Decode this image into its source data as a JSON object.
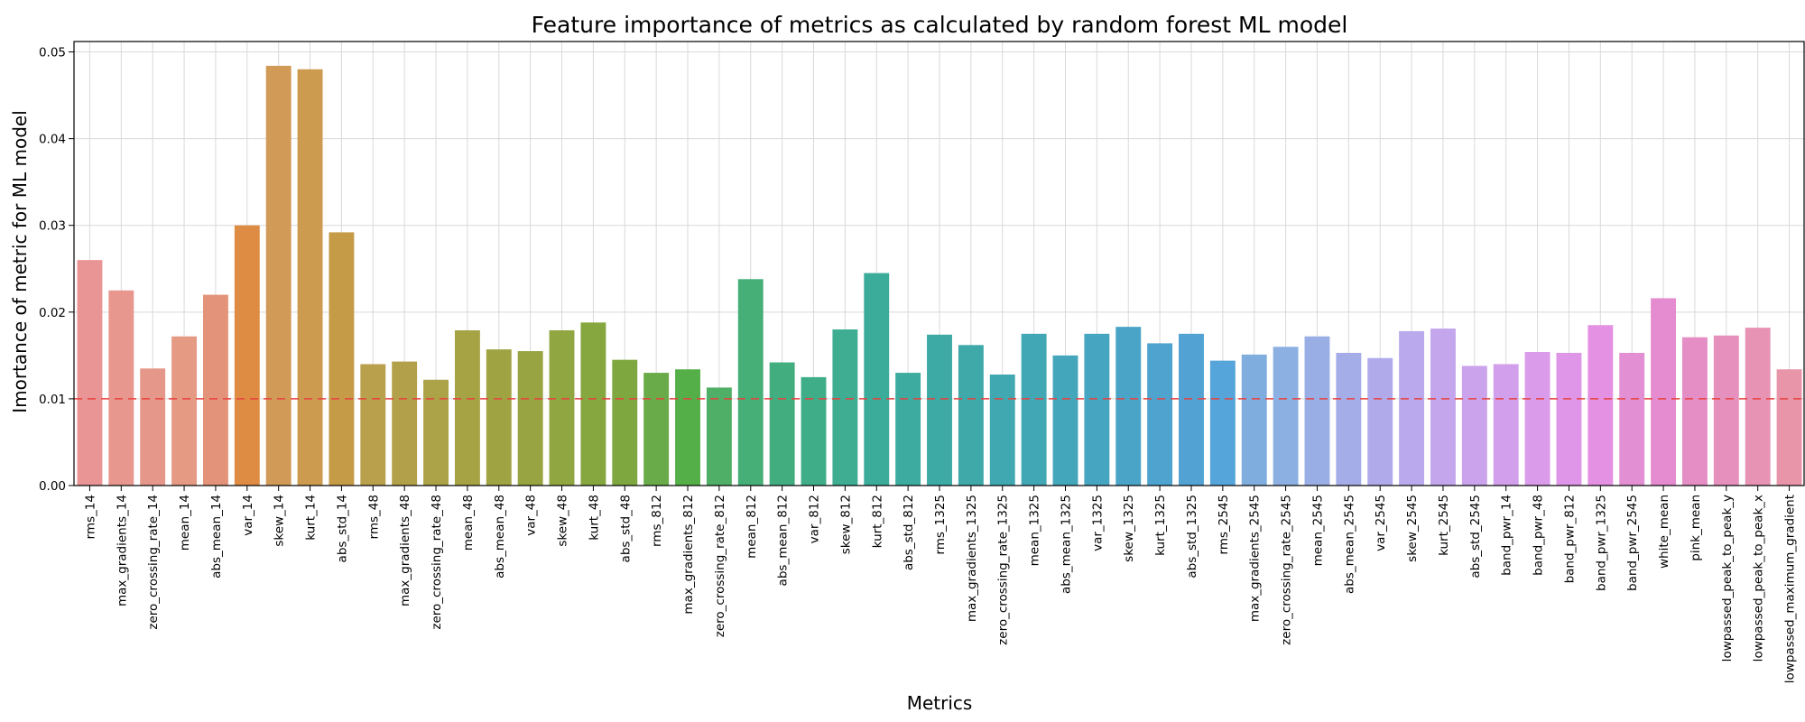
{
  "chart_data": {
    "type": "bar",
    "title": "Feature importance of metrics as calculated by random forest ML model",
    "xlabel": "Metrics",
    "ylabel": "Imortance of metric for ML model",
    "ylim": [
      0,
      0.0512
    ],
    "yticks": [
      "0.00",
      "0.01",
      "0.02",
      "0.03",
      "0.04",
      "0.05"
    ],
    "grid": true,
    "reference_line": {
      "y": 0.01,
      "color": "#e8413f",
      "style": "dashed"
    },
    "categories": [
      "rms_14",
      "max_gradients_14",
      "zero_crossing_rate_14",
      "mean_14",
      "abs_mean_14",
      "var_14",
      "skew_14",
      "kurt_14",
      "abs_std_14",
      "rms_48",
      "max_gradients_48",
      "zero_crossing_rate_48",
      "mean_48",
      "abs_mean_48",
      "var_48",
      "skew_48",
      "kurt_48",
      "abs_std_48",
      "rms_812",
      "max_gradients_812",
      "zero_crossing_rate_812",
      "mean_812",
      "abs_mean_812",
      "var_812",
      "skew_812",
      "kurt_812",
      "abs_std_812",
      "rms_1325",
      "max_gradients_1325",
      "zero_crossing_rate_1325",
      "mean_1325",
      "abs_mean_1325",
      "var_1325",
      "skew_1325",
      "kurt_1325",
      "abs_std_1325",
      "rms_2545",
      "max_gradients_2545",
      "zero_crossing_rate_2545",
      "mean_2545",
      "abs_mean_2545",
      "var_2545",
      "skew_2545",
      "kurt_2545",
      "abs_std_2545",
      "band_pwr_14",
      "band_pwr_48",
      "band_pwr_812",
      "band_pwr_1325",
      "band_pwr_2545",
      "white_mean",
      "pink_mean",
      "lowpassed_peak_to_peak_y",
      "lowpassed_peak_to_peak_x",
      "lowpassed_maximum_gradient"
    ],
    "values": [
      0.026,
      0.0225,
      0.0135,
      0.0172,
      0.022,
      0.03,
      0.0484,
      0.048,
      0.0292,
      0.014,
      0.0143,
      0.0122,
      0.0179,
      0.0157,
      0.0155,
      0.0179,
      0.0188,
      0.0145,
      0.013,
      0.0134,
      0.0113,
      0.0238,
      0.0142,
      0.0125,
      0.018,
      0.0245,
      0.013,
      0.0174,
      0.0162,
      0.0128,
      0.0175,
      0.015,
      0.0175,
      0.0183,
      0.0164,
      0.0175,
      0.0144,
      0.0151,
      0.016,
      0.0172,
      0.0153,
      0.0147,
      0.0178,
      0.0181,
      0.0138,
      0.014,
      0.0154,
      0.0153,
      0.0185,
      0.0153,
      0.0216,
      0.0171,
      0.0173,
      0.0182,
      0.0134
    ],
    "colors": [
      "#e99495",
      "#e8978f",
      "#e59889",
      "#e49a83",
      "#e39379",
      "#de8c44",
      "#d19a57",
      "#cc9b50",
      "#c69b47",
      "#b8a04d",
      "#b2a14a",
      "#aca248",
      "#a6a345",
      "#a0a342",
      "#98a442",
      "#90a640",
      "#86a73f",
      "#7ea83f",
      "#69ab48",
      "#55af48",
      "#4faf66",
      "#46af78",
      "#42ae80",
      "#3fae88",
      "#3ead92",
      "#3cac9a",
      "#3dab9f",
      "#3eaaa5",
      "#3fa9aa",
      "#40a8b0",
      "#41a7b5",
      "#43a6bb",
      "#46a5c1",
      "#4aa4c8",
      "#4fa3cf",
      "#52a2d4",
      "#55a5da",
      "#7fadde",
      "#8db0e2",
      "#9aaee6",
      "#a5ade8",
      "#b0aaea",
      "#baa9ec",
      "#c3a6ec",
      "#cba3ec",
      "#d29fec",
      "#d99bea",
      "#df96e8",
      "#e491e4",
      "#e38fd4",
      "#e48ccf",
      "#e58ec6",
      "#e690bd",
      "#e793b4",
      "#e895a9"
    ]
  }
}
